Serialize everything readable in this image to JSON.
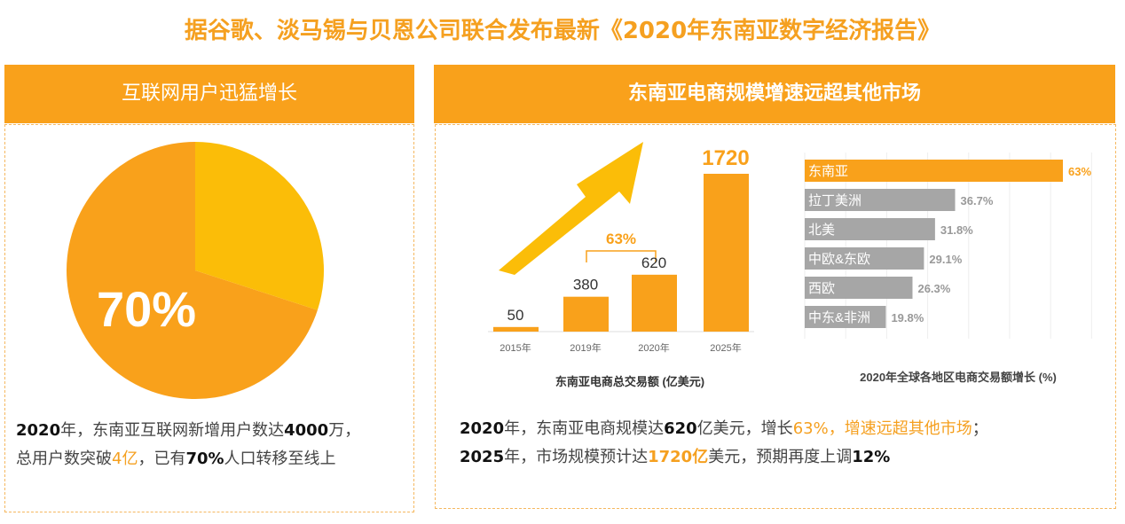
{
  "title": "据谷歌、淡马锡与贝恩公司联合发布最新《2020年东南亚数字经济报告》",
  "left_panel": {
    "heading": "互联网用户迅猛增长",
    "desc": {
      "l1a": "2020",
      "l1b": "年，东南亚互联网新增用户数达",
      "l1c": "4000",
      "l1d": "万，",
      "l2a": "总用户数突破",
      "l2b": "4亿",
      "l2c": "，已有",
      "l2d": "70%",
      "l2e": "人口转移至线上"
    }
  },
  "right_panel": {
    "heading": "东南亚电商规模增速远超其他市场",
    "desc": {
      "l1a": "2020",
      "l1b": "年，东南亚电商规模达",
      "l1c": "620",
      "l1d": "亿美元，增长",
      "l1e": "63%，增速远超其他市场",
      "l1f": "；",
      "l2a": "2025",
      "l2b": "年，市场规模预计达",
      "l2c": "1720亿",
      "l2d": "美元，预期再度上调",
      "l2e": "12%"
    }
  },
  "colors": {
    "orange": "#f9a11b",
    "yellow": "#fbbd08",
    "gray": "#a6a6a6"
  },
  "chart_data": [
    {
      "type": "pie",
      "values": [
        70,
        30
      ],
      "labels": [
        "70%",
        ""
      ],
      "colors": [
        "#f9a11b",
        "#fbbd08"
      ]
    },
    {
      "type": "bar",
      "title": "东南亚电商总交易额 (亿美元)",
      "categories": [
        "2015年",
        "2019年",
        "2020年",
        "2025年"
      ],
      "values": [
        50,
        380,
        620,
        1720
      ],
      "annotation": "63%"
    },
    {
      "type": "bar",
      "orientation": "horizontal",
      "title": "2020年全球各地区电商交易额增长 (%)",
      "categories": [
        "东南亚",
        "拉丁美洲",
        "北美",
        "中欧&东欧",
        "西欧",
        "中东&非洲"
      ],
      "values": [
        63,
        36.7,
        31.8,
        29.1,
        26.3,
        19.8
      ],
      "value_labels": [
        "63%",
        "36.7%",
        "31.8%",
        "29.1%",
        "26.3%",
        "19.8%"
      ],
      "xlim": [
        0,
        70
      ],
      "grid": true
    }
  ]
}
